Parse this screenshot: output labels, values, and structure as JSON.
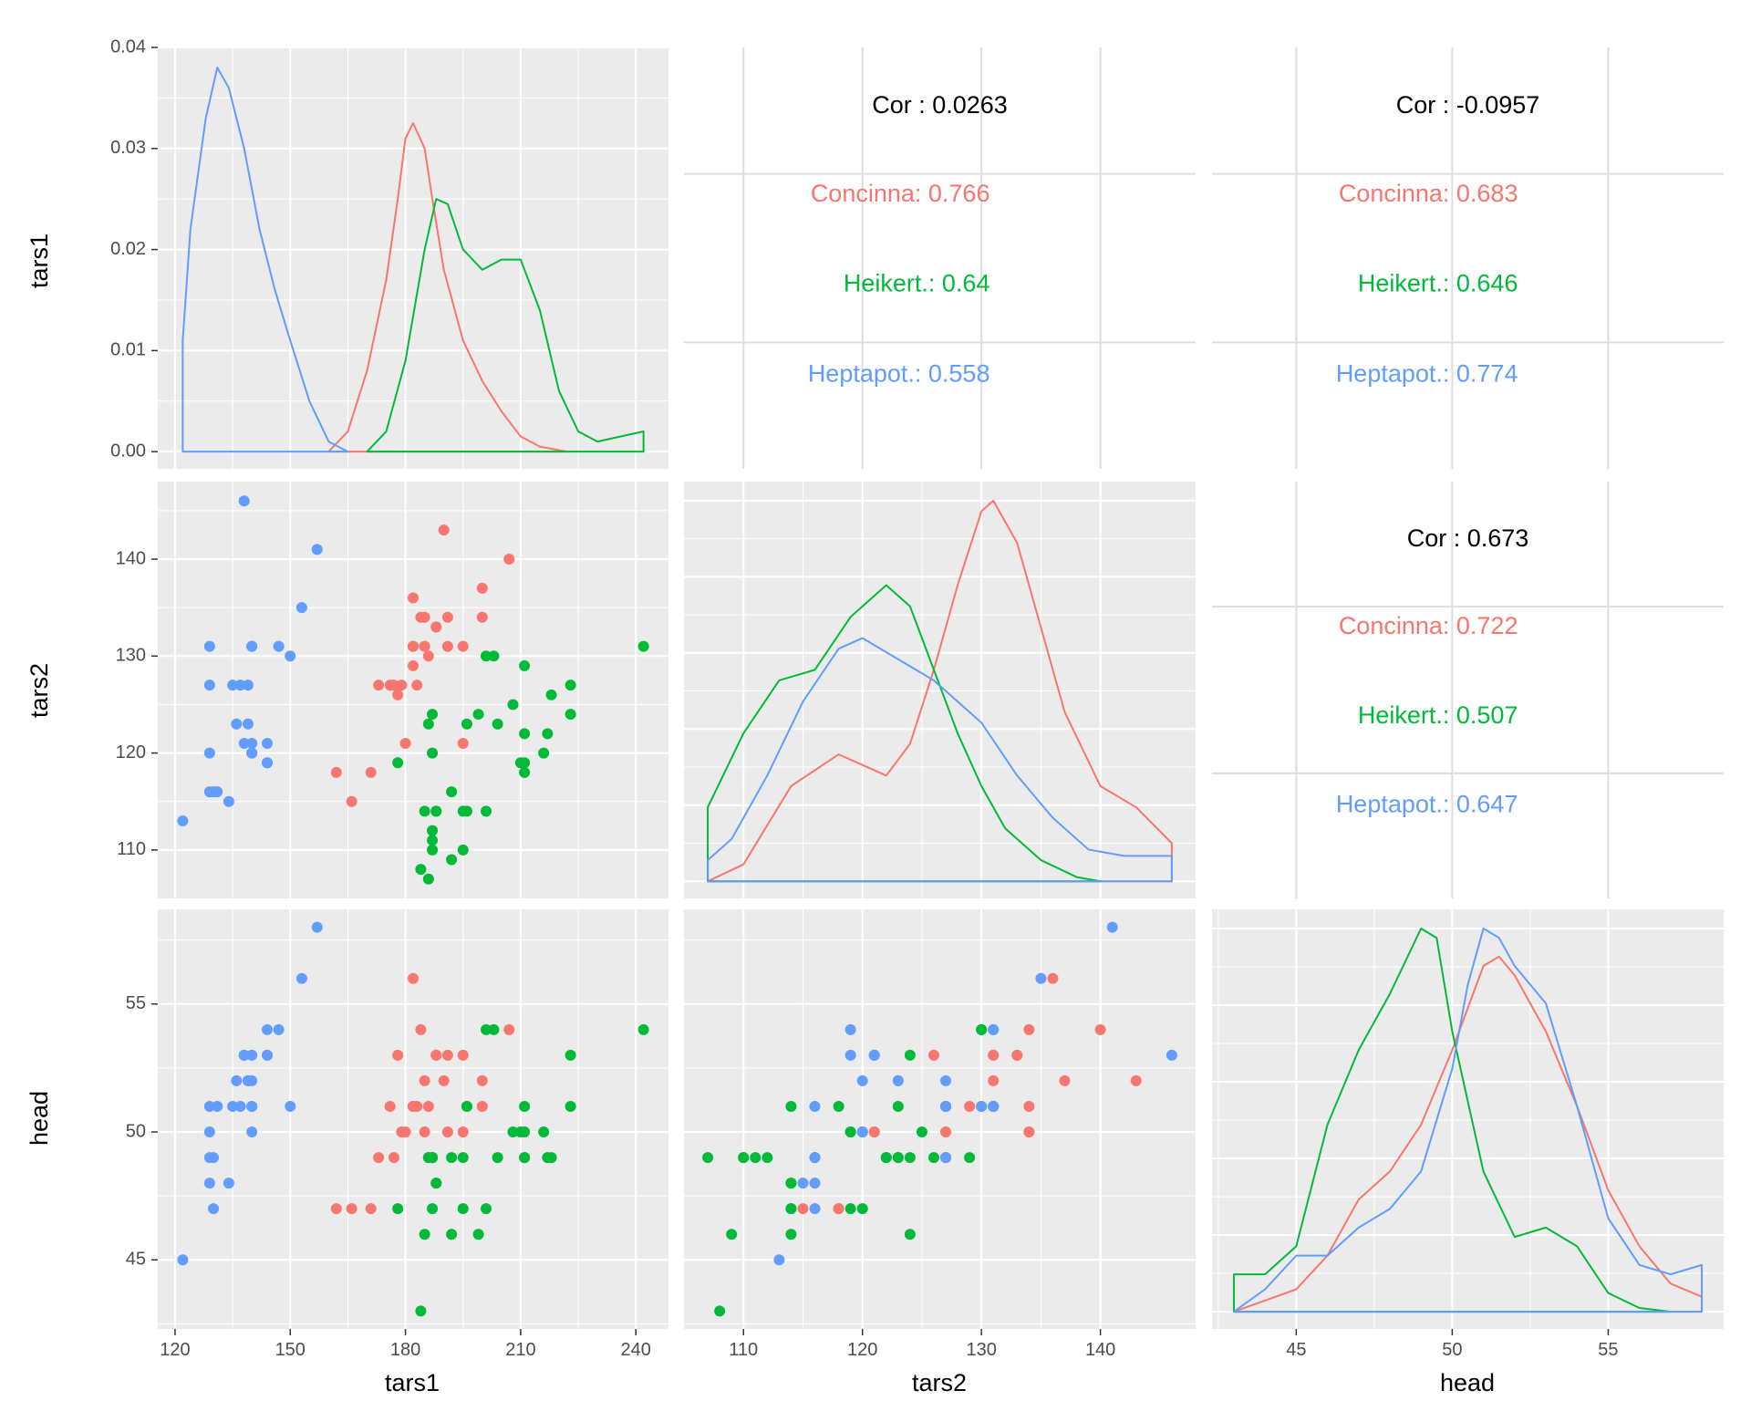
{
  "colors": {
    "Concinna": "#F8766D",
    "Heikert.": "#00BA38",
    "Heptapot.": "#619CFF",
    "panel_bg": "#EBEBEB",
    "grid": "#FFFFFF",
    "text": "#000000",
    "tick": "#4D4D4D"
  },
  "chart_data": {
    "type": "scatter",
    "variables": [
      "tars1",
      "tars2",
      "head"
    ],
    "groups": [
      "Concinna",
      "Heikert.",
      "Heptapot."
    ],
    "axis_titles": {
      "x": [
        "tars1",
        "tars2",
        "head"
      ],
      "y": [
        "tars1",
        "tars2",
        "head"
      ]
    },
    "axes": {
      "tars1": {
        "range": [
          115.5,
          248.5
        ],
        "ticks": [
          120,
          150,
          180,
          210,
          240
        ]
      },
      "tars2": {
        "range": [
          105,
          148
        ],
        "ticks": [
          110,
          120,
          130,
          140
        ]
      },
      "head": {
        "range": [
          42.3,
          58.7
        ],
        "ticks": [
          45,
          50,
          55
        ]
      }
    },
    "density_axis": {
      "range": [
        -0.0017,
        0.04
      ],
      "ticks": [
        "0.00",
        "0.01",
        "0.02",
        "0.03",
        "0.04"
      ],
      "tick_values": [
        0,
        0.01,
        0.02,
        0.03,
        0.04
      ]
    },
    "correlations": [
      {
        "row": 0,
        "col": 1,
        "overall": "Cor : 0.0263",
        "groups": [
          "Concinna: 0.766",
          "Heikert.: 0.64",
          "Heptapot.: 0.558"
        ]
      },
      {
        "row": 0,
        "col": 2,
        "overall": "Cor : -0.0957",
        "groups": [
          "Concinna: 0.683",
          "Heikert.: 0.646",
          "Heptapot.: 0.774"
        ]
      },
      {
        "row": 1,
        "col": 2,
        "overall": "Cor : 0.673",
        "groups": [
          "Concinna: 0.722",
          "Heikert.: 0.507",
          "Heptapot.: 0.647"
        ]
      }
    ],
    "densities": {
      "tars1": {
        "Concinna": [
          [
            160,
            0
          ],
          [
            165,
            0.002
          ],
          [
            170,
            0.008
          ],
          [
            175,
            0.017
          ],
          [
            178,
            0.025
          ],
          [
            180,
            0.031
          ],
          [
            182,
            0.0325
          ],
          [
            185,
            0.03
          ],
          [
            187,
            0.025
          ],
          [
            190,
            0.018
          ],
          [
            195,
            0.011
          ],
          [
            200,
            0.007
          ],
          [
            205,
            0.004
          ],
          [
            210,
            0.0015
          ],
          [
            215,
            0.0005
          ],
          [
            222,
            0
          ]
        ],
        "Heikert.": [
          [
            170,
            0
          ],
          [
            175,
            0.002
          ],
          [
            180,
            0.009
          ],
          [
            185,
            0.02
          ],
          [
            188,
            0.025
          ],
          [
            191,
            0.0245
          ],
          [
            195,
            0.02
          ],
          [
            200,
            0.018
          ],
          [
            205,
            0.019
          ],
          [
            210,
            0.019
          ],
          [
            215,
            0.014
          ],
          [
            220,
            0.006
          ],
          [
            225,
            0.002
          ],
          [
            230,
            0.001
          ],
          [
            242,
            0.002
          ]
        ],
        "Heptapot.": [
          [
            122,
            0.011
          ],
          [
            124,
            0.022
          ],
          [
            128,
            0.033
          ],
          [
            131,
            0.038
          ],
          [
            134,
            0.036
          ],
          [
            138,
            0.03
          ],
          [
            142,
            0.022
          ],
          [
            146,
            0.016
          ],
          [
            150,
            0.011
          ],
          [
            155,
            0.005
          ],
          [
            160,
            0.001
          ],
          [
            165,
            0
          ]
        ]
      },
      "tars2": {
        "Concinna": [
          [
            107,
            0
          ],
          [
            110,
            0.008
          ],
          [
            114,
            0.045
          ],
          [
            118,
            0.06
          ],
          [
            120,
            0.055
          ],
          [
            122,
            0.05
          ],
          [
            124,
            0.065
          ],
          [
            126,
            0.1
          ],
          [
            128,
            0.14
          ],
          [
            130,
            0.175
          ],
          [
            131,
            0.18
          ],
          [
            133,
            0.16
          ],
          [
            135,
            0.12
          ],
          [
            137,
            0.08
          ],
          [
            140,
            0.045
          ],
          [
            143,
            0.035
          ],
          [
            146,
            0.018
          ]
        ],
        "Heikert.": [
          [
            107,
            0.035
          ],
          [
            110,
            0.07
          ],
          [
            113,
            0.095
          ],
          [
            116,
            0.1
          ],
          [
            119,
            0.125
          ],
          [
            122,
            0.14
          ],
          [
            124,
            0.13
          ],
          [
            126,
            0.1
          ],
          [
            128,
            0.07
          ],
          [
            130,
            0.045
          ],
          [
            132,
            0.025
          ],
          [
            135,
            0.01
          ],
          [
            138,
            0.002
          ],
          [
            140,
            0
          ]
        ],
        "Heptapot.": [
          [
            107,
            0.01
          ],
          [
            109,
            0.02
          ],
          [
            112,
            0.05
          ],
          [
            115,
            0.085
          ],
          [
            118,
            0.11
          ],
          [
            120,
            0.115
          ],
          [
            123,
            0.105
          ],
          [
            126,
            0.095
          ],
          [
            130,
            0.075
          ],
          [
            133,
            0.05
          ],
          [
            136,
            0.03
          ],
          [
            139,
            0.015
          ],
          [
            142,
            0.012
          ],
          [
            146,
            0.012
          ]
        ]
      },
      "head": {
        "Concinna": [
          [
            43,
            0
          ],
          [
            45,
            0.012
          ],
          [
            46,
            0.03
          ],
          [
            47,
            0.06
          ],
          [
            48,
            0.075
          ],
          [
            49,
            0.1
          ],
          [
            50,
            0.14
          ],
          [
            51,
            0.185
          ],
          [
            51.5,
            0.19
          ],
          [
            52,
            0.18
          ],
          [
            53,
            0.15
          ],
          [
            54,
            0.11
          ],
          [
            55,
            0.065
          ],
          [
            56,
            0.035
          ],
          [
            57,
            0.015
          ],
          [
            58,
            0.008
          ]
        ],
        "Heikert.": [
          [
            43,
            0.02
          ],
          [
            44,
            0.02
          ],
          [
            45,
            0.035
          ],
          [
            46,
            0.1
          ],
          [
            47,
            0.14
          ],
          [
            48,
            0.17
          ],
          [
            49,
            0.205
          ],
          [
            49.5,
            0.2
          ],
          [
            50,
            0.15
          ],
          [
            51,
            0.075
          ],
          [
            52,
            0.04
          ],
          [
            53,
            0.045
          ],
          [
            54,
            0.035
          ],
          [
            55,
            0.01
          ],
          [
            56,
            0.002
          ],
          [
            57,
            0
          ]
        ],
        "Heptapot.": [
          [
            43,
            0
          ],
          [
            44,
            0.012
          ],
          [
            45,
            0.03
          ],
          [
            46,
            0.03
          ],
          [
            47,
            0.045
          ],
          [
            48,
            0.055
          ],
          [
            49,
            0.075
          ],
          [
            50,
            0.13
          ],
          [
            50.5,
            0.175
          ],
          [
            51,
            0.205
          ],
          [
            51.5,
            0.2
          ],
          [
            52,
            0.185
          ],
          [
            53,
            0.165
          ],
          [
            54,
            0.11
          ],
          [
            55,
            0.05
          ],
          [
            56,
            0.025
          ],
          [
            57,
            0.02
          ],
          [
            58,
            0.025
          ]
        ]
      }
    },
    "points": {
      "Concinna": [
        [
          191,
          131,
          53
        ],
        [
          185,
          134,
          50
        ],
        [
          200,
          137,
          52
        ],
        [
          173,
          127,
          49
        ],
        [
          171,
          118,
          47
        ],
        [
          184,
          134,
          54
        ],
        [
          182,
          136,
          56
        ],
        [
          195,
          131,
          53
        ],
        [
          186,
          130,
          51
        ],
        [
          177,
          127,
          49
        ],
        [
          178,
          126,
          53
        ],
        [
          176,
          127,
          51
        ],
        [
          182,
          131,
          51
        ],
        [
          182,
          129,
          51
        ],
        [
          179,
          127,
          50
        ],
        [
          183,
          127,
          51
        ],
        [
          188,
          133,
          53
        ],
        [
          162,
          118,
          47
        ],
        [
          166,
          115,
          47
        ],
        [
          188,
          133,
          53
        ],
        [
          180,
          121,
          50
        ],
        [
          207,
          140,
          54
        ],
        [
          185,
          131,
          52
        ],
        [
          200,
          134,
          51
        ],
        [
          182,
          131,
          51
        ],
        [
          195,
          121,
          50
        ],
        [
          190,
          143,
          52
        ],
        [
          191,
          134,
          50
        ]
      ],
      "Heikert.": [
        [
          186,
          107,
          49
        ],
        [
          211,
          122,
          49
        ],
        [
          201,
          114,
          47
        ],
        [
          242,
          131,
          54
        ],
        [
          184,
          108,
          43
        ],
        [
          211,
          118,
          51
        ],
        [
          217,
          122,
          49
        ],
        [
          223,
          127,
          51
        ],
        [
          208,
          125,
          50
        ],
        [
          199,
          124,
          46
        ],
        [
          211,
          129,
          49
        ],
        [
          218,
          126,
          49
        ],
        [
          203,
          130,
          54
        ],
        [
          192,
          116,
          49
        ],
        [
          195,
          114,
          47
        ],
        [
          211,
          119,
          50
        ],
        [
          187,
          111,
          49
        ],
        [
          192,
          109,
          46
        ],
        [
          223,
          124,
          53
        ],
        [
          188,
          114,
          48
        ],
        [
          216,
          120,
          50
        ],
        [
          185,
          114,
          46
        ],
        [
          178,
          119,
          47
        ],
        [
          187,
          110,
          49
        ],
        [
          187,
          112,
          49
        ],
        [
          201,
          130,
          54
        ],
        [
          187,
          120,
          47
        ],
        [
          210,
          119,
          50
        ],
        [
          196,
          114,
          51
        ],
        [
          195,
          110,
          49
        ],
        [
          187,
          124,
          49
        ],
        [
          196,
          123,
          51
        ],
        [
          188,
          114,
          48
        ],
        [
          186,
          123,
          49
        ],
        [
          204,
          123,
          49
        ]
      ],
      "Heptapot.": [
        [
          150,
          130,
          51
        ],
        [
          147,
          131,
          54
        ],
        [
          144,
          121,
          53
        ],
        [
          144,
          119,
          53
        ],
        [
          153,
          135,
          56
        ],
        [
          140,
          131,
          51
        ],
        [
          140,
          120,
          50
        ],
        [
          140,
          121,
          53
        ],
        [
          131,
          116,
          51
        ],
        [
          139,
          127,
          52
        ],
        [
          139,
          123,
          52
        ],
        [
          136,
          123,
          52
        ],
        [
          129,
          120,
          50
        ],
        [
          140,
          120,
          52
        ],
        [
          129,
          116,
          48
        ],
        [
          144,
          119,
          54
        ],
        [
          157,
          141,
          58
        ],
        [
          135,
          127,
          51
        ],
        [
          140,
          131,
          51
        ],
        [
          138,
          121,
          53
        ],
        [
          129,
          131,
          51
        ],
        [
          122,
          113,
          45
        ],
        [
          129,
          127,
          49
        ],
        [
          130,
          116,
          47
        ],
        [
          134,
          115,
          48
        ],
        [
          138,
          146,
          53
        ],
        [
          137,
          127,
          51
        ],
        [
          130,
          116,
          49
        ]
      ]
    }
  }
}
